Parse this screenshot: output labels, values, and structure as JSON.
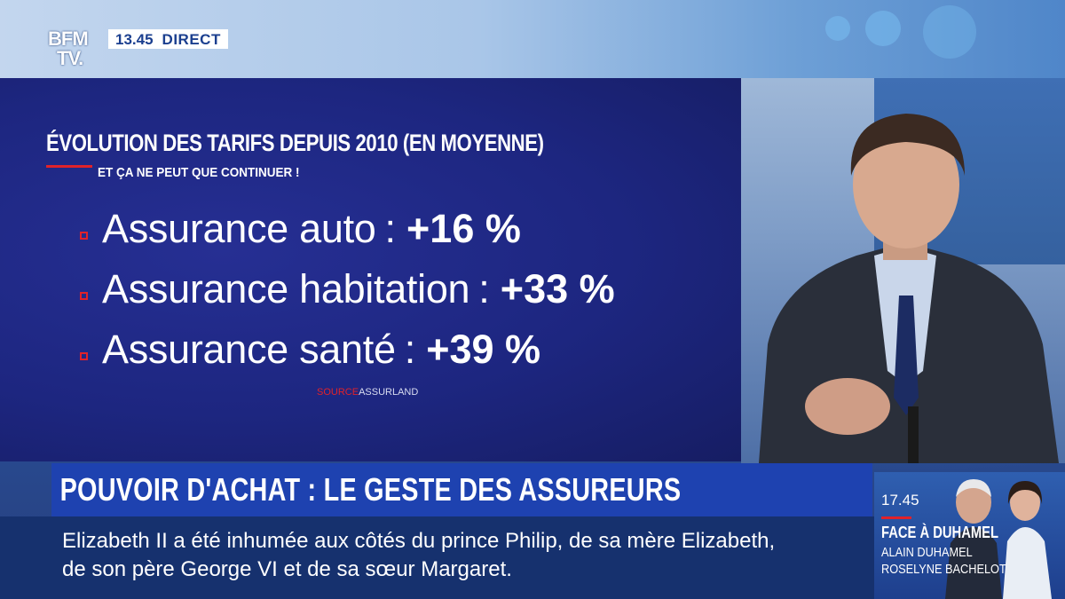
{
  "channel": {
    "logo_line1": "BFM",
    "logo_line2": "TV.",
    "clock": "13.45",
    "live_label": "DIRECT"
  },
  "panel": {
    "title": "ÉVOLUTION DES TARIFS DEPUIS 2010 (EN MOYENNE)",
    "subtitle": "ET ÇA NE PEUT QUE CONTINUER !",
    "items": [
      {
        "label": "Assurance auto",
        "value": "+16 %"
      },
      {
        "label": "Assurance habitation",
        "value": "+33 %"
      },
      {
        "label": "Assurance santé",
        "value": "+39 %"
      }
    ],
    "separator": ":",
    "source_prefix": "SOURCE",
    "source_name": "ASSURLAND"
  },
  "headline": "POUVOIR D'ACHAT : LE GESTE DES ASSUREURS",
  "ticker": {
    "line1": "Elizabeth II a été inhumée aux côtés du prince Philip, de sa mère Elizabeth,",
    "line2": "de son père George VI et de sa sœur Margaret."
  },
  "next_program": {
    "time": "17.45",
    "title": "FACE À DUHAMEL",
    "guest1": "ALAIN DUHAMEL",
    "guest2": "ROSELYNE BACHELOT"
  },
  "colors": {
    "accent_red": "#e0222a",
    "headline_blue": "#1e42b0",
    "ticker_navy": "#16316e"
  }
}
